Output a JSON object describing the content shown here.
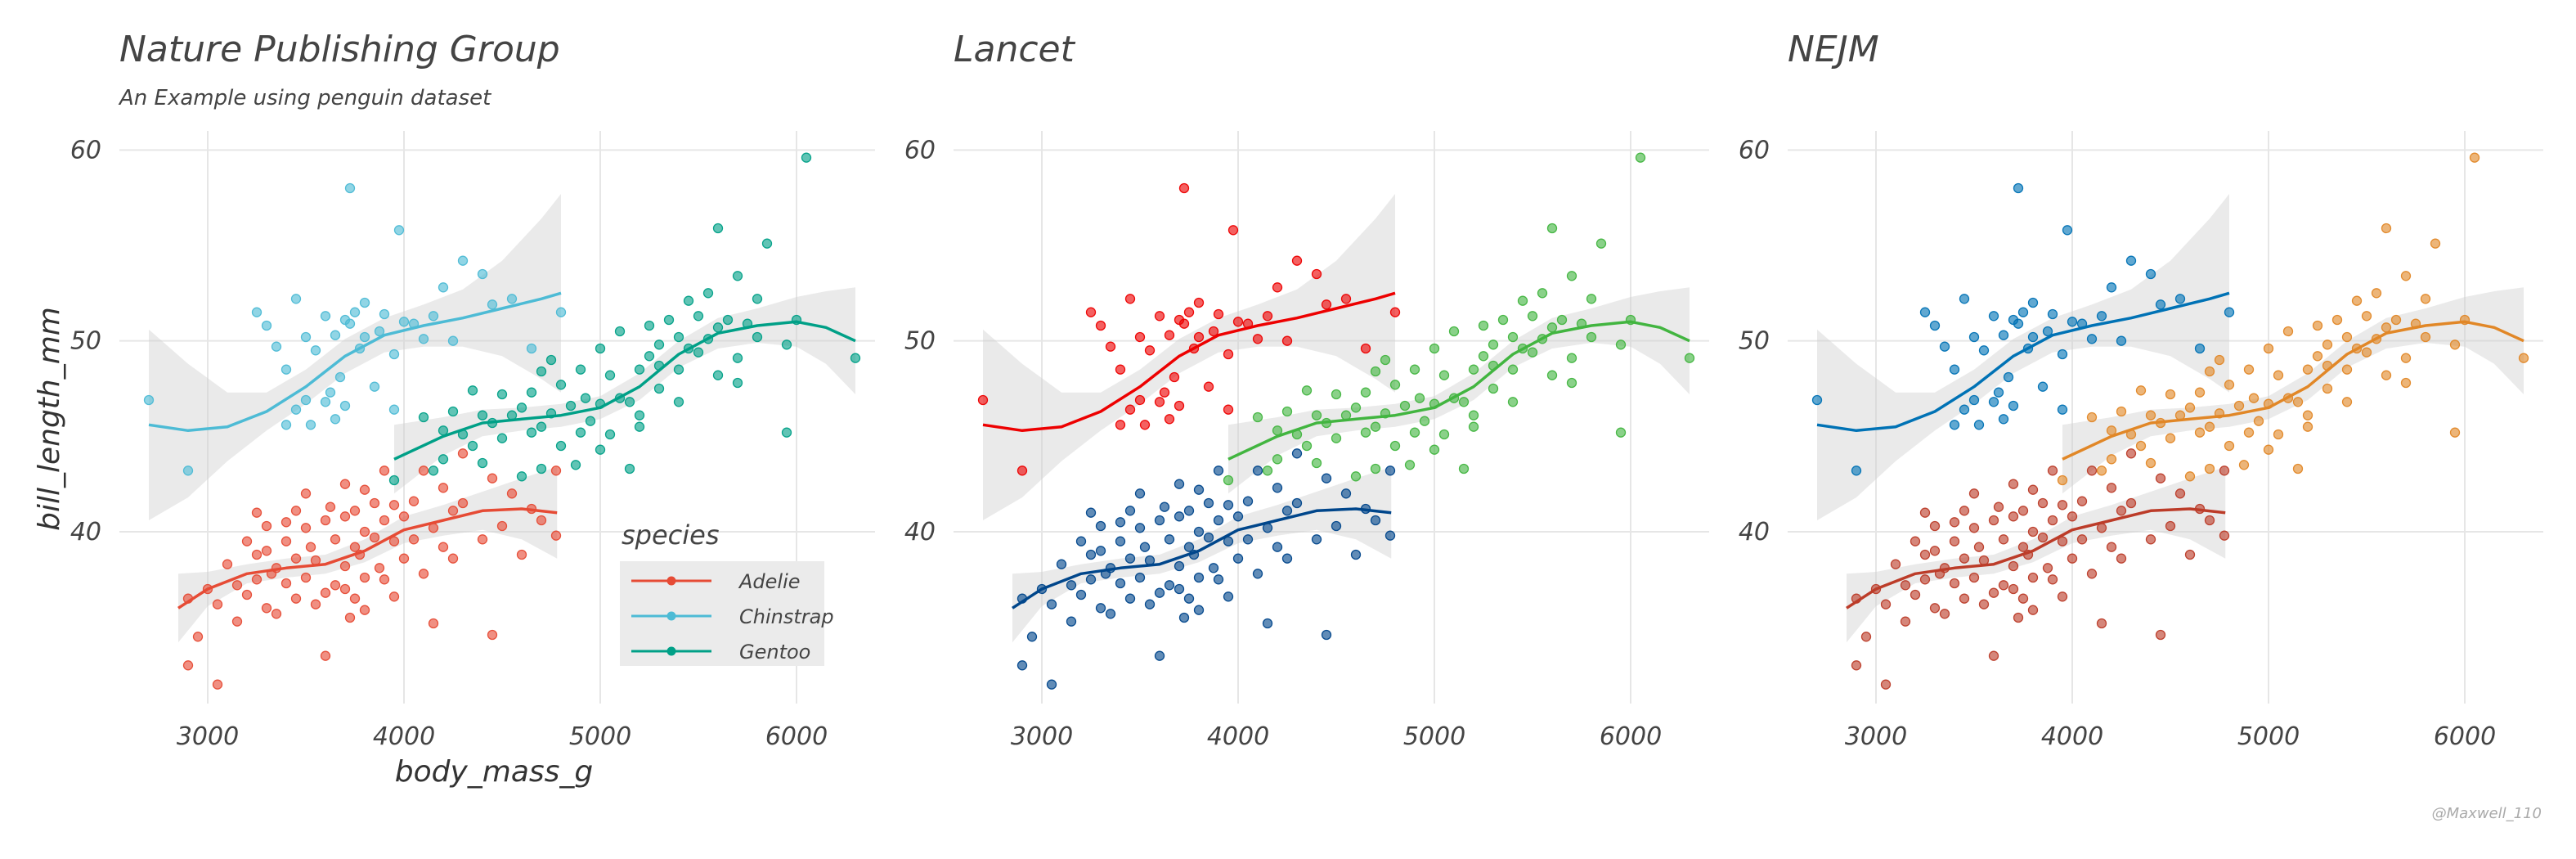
{
  "figure": {
    "xlabel": "body_mass_g",
    "ylabel": "bill_length_mm",
    "caption": "@Maxwell_110",
    "legend": {
      "title": "species",
      "placement": "inside-bottom-right of first panel",
      "entries": [
        "Adelie",
        "Chinstrap",
        "Gentoo"
      ]
    }
  },
  "chart_data": [
    {
      "type": "scatter",
      "title": "Nature Publishing Group",
      "subtitle": "An Example using penguin dataset",
      "xlabel": "body_mass_g",
      "ylabel": "bill_length_mm",
      "xlim": [
        2550,
        6400
      ],
      "ylim": [
        31,
        61
      ],
      "xticks": [
        3000,
        4000,
        5000,
        6000
      ],
      "yticks": [
        40,
        50,
        60
      ],
      "grid": true,
      "colors": {
        "Adelie": "#E64B35",
        "Chinstrap": "#4DBBD5",
        "Gentoo": "#00A087"
      },
      "smooth": true
    },
    {
      "type": "scatter",
      "title": "Lancet",
      "subtitle": "",
      "xlim": [
        2550,
        6400
      ],
      "ylim": [
        31,
        61
      ],
      "xticks": [
        3000,
        4000,
        5000,
        6000
      ],
      "yticks": [
        40,
        50,
        60
      ],
      "grid": true,
      "colors": {
        "Adelie": "#00468B",
        "Chinstrap": "#ED0000",
        "Gentoo": "#42B540"
      },
      "smooth": true
    },
    {
      "type": "scatter",
      "title": "NEJM",
      "subtitle": "",
      "xlim": [
        2550,
        6400
      ],
      "ylim": [
        31,
        61
      ],
      "xticks": [
        3000,
        4000,
        5000,
        6000
      ],
      "yticks": [
        40,
        50,
        60
      ],
      "grid": true,
      "colors": {
        "Adelie": "#BC3C29",
        "Chinstrap": "#0072B5",
        "Gentoo": "#E18727"
      },
      "smooth": true
    }
  ],
  "series": [
    {
      "name": "Adelie",
      "smooth": [
        [
          2850,
          36
        ],
        [
          3000,
          37
        ],
        [
          3200,
          37.8
        ],
        [
          3400,
          38.1
        ],
        [
          3600,
          38.3
        ],
        [
          3800,
          39
        ],
        [
          4000,
          40.1
        ],
        [
          4200,
          40.6
        ],
        [
          4400,
          41.1
        ],
        [
          4600,
          41.2
        ],
        [
          4780,
          41
        ]
      ],
      "band": [
        1.8,
        0.9,
        0.5,
        0.5,
        0.5,
        0.6,
        0.7,
        0.8,
        1.0,
        1.6,
        2.4
      ],
      "points": [
        [
          2900,
          33
        ],
        [
          2900,
          36.5
        ],
        [
          2950,
          34.5
        ],
        [
          3000,
          37
        ],
        [
          3050,
          32
        ],
        [
          3050,
          36.2
        ],
        [
          3100,
          38.3
        ],
        [
          3150,
          37.2
        ],
        [
          3150,
          35.3
        ],
        [
          3200,
          39.5
        ],
        [
          3200,
          36.7
        ],
        [
          3250,
          41
        ],
        [
          3250,
          37.5
        ],
        [
          3250,
          38.8
        ],
        [
          3300,
          40.3
        ],
        [
          3300,
          36
        ],
        [
          3300,
          39
        ],
        [
          3325,
          37.8
        ],
        [
          3350,
          38.1
        ],
        [
          3350,
          35.7
        ],
        [
          3400,
          40.5
        ],
        [
          3400,
          37.3
        ],
        [
          3400,
          39.5
        ],
        [
          3450,
          38.6
        ],
        [
          3450,
          36.5
        ],
        [
          3450,
          41.1
        ],
        [
          3500,
          42
        ],
        [
          3500,
          37.6
        ],
        [
          3500,
          40.2
        ],
        [
          3525,
          39.2
        ],
        [
          3550,
          36.2
        ],
        [
          3550,
          38.5
        ],
        [
          3600,
          40.6
        ],
        [
          3600,
          33.5
        ],
        [
          3600,
          36.8
        ],
        [
          3625,
          41.3
        ],
        [
          3650,
          37.2
        ],
        [
          3650,
          39.6
        ],
        [
          3700,
          42.5
        ],
        [
          3700,
          40.8
        ],
        [
          3700,
          38.2
        ],
        [
          3700,
          37
        ],
        [
          3725,
          35.5
        ],
        [
          3750,
          39.2
        ],
        [
          3750,
          41.1
        ],
        [
          3750,
          36.5
        ],
        [
          3775,
          38.8
        ],
        [
          3800,
          42.2
        ],
        [
          3800,
          40
        ],
        [
          3800,
          37.6
        ],
        [
          3800,
          35.9
        ],
        [
          3850,
          39.7
        ],
        [
          3850,
          41.5
        ],
        [
          3875,
          38.1
        ],
        [
          3900,
          43.2
        ],
        [
          3900,
          37.5
        ],
        [
          3900,
          40.6
        ],
        [
          3950,
          39.5
        ],
        [
          3950,
          41.4
        ],
        [
          3950,
          36.6
        ],
        [
          4000,
          38.6
        ],
        [
          4000,
          40.8
        ],
        [
          4050,
          39.6
        ],
        [
          4050,
          41.6
        ],
        [
          4100,
          43.2
        ],
        [
          4100,
          37.8
        ],
        [
          4150,
          40.2
        ],
        [
          4150,
          35.2
        ],
        [
          4200,
          42.3
        ],
        [
          4200,
          39.2
        ],
        [
          4250,
          41.1
        ],
        [
          4250,
          38.6
        ],
        [
          4300,
          41.5
        ],
        [
          4300,
          44.1
        ],
        [
          4400,
          39.6
        ],
        [
          4450,
          34.6
        ],
        [
          4450,
          42.8
        ],
        [
          4500,
          40.3
        ],
        [
          4550,
          42
        ],
        [
          4600,
          38.8
        ],
        [
          4650,
          41.2
        ],
        [
          4700,
          40.6
        ],
        [
          4775,
          39.8
        ],
        [
          4775,
          43.2
        ]
      ]
    },
    {
      "name": "Chinstrap",
      "smooth": [
        [
          2700,
          45.6
        ],
        [
          2900,
          45.3
        ],
        [
          3100,
          45.5
        ],
        [
          3300,
          46.3
        ],
        [
          3500,
          47.6
        ],
        [
          3700,
          49.2
        ],
        [
          3900,
          50.3
        ],
        [
          4100,
          50.8
        ],
        [
          4300,
          51.2
        ],
        [
          4500,
          51.7
        ],
        [
          4700,
          52.2
        ],
        [
          4800,
          52.5
        ]
      ],
      "band": [
        5,
        3.5,
        1.8,
        1.0,
        0.9,
        0.9,
        0.9,
        1.1,
        1.5,
        2.5,
        4.2,
        5.2
      ],
      "points": [
        [
          2700,
          46.9
        ],
        [
          2900,
          43.2
        ],
        [
          3250,
          51.5
        ],
        [
          3300,
          50.8
        ],
        [
          3350,
          49.7
        ],
        [
          3400,
          45.6
        ],
        [
          3400,
          48.5
        ],
        [
          3450,
          52.2
        ],
        [
          3450,
          46.4
        ],
        [
          3500,
          50.2
        ],
        [
          3500,
          46.9
        ],
        [
          3525,
          45.6
        ],
        [
          3550,
          49.5
        ],
        [
          3600,
          51.3
        ],
        [
          3600,
          46.8
        ],
        [
          3625,
          47.3
        ],
        [
          3650,
          50.3
        ],
        [
          3650,
          45.9
        ],
        [
          3675,
          48.1
        ],
        [
          3700,
          51.1
        ],
        [
          3700,
          46.6
        ],
        [
          3725,
          58
        ],
        [
          3725,
          50.9
        ],
        [
          3750,
          51.5
        ],
        [
          3775,
          49.6
        ],
        [
          3800,
          52
        ],
        [
          3800,
          50.2
        ],
        [
          3850,
          47.6
        ],
        [
          3875,
          50.5
        ],
        [
          3900,
          51.4
        ],
        [
          3950,
          46.4
        ],
        [
          3950,
          49.3
        ],
        [
          3975,
          55.8
        ],
        [
          4000,
          51
        ],
        [
          4050,
          50.9
        ],
        [
          4100,
          50.1
        ],
        [
          4150,
          51.3
        ],
        [
          4200,
          52.8
        ],
        [
          4250,
          50
        ],
        [
          4300,
          54.2
        ],
        [
          4400,
          53.5
        ],
        [
          4450,
          51.9
        ],
        [
          4550,
          52.2
        ],
        [
          4650,
          49.6
        ],
        [
          4800,
          51.5
        ]
      ]
    },
    {
      "name": "Gentoo",
      "smooth": [
        [
          3950,
          43.8
        ],
        [
          4200,
          45
        ],
        [
          4400,
          45.7
        ],
        [
          4600,
          45.9
        ],
        [
          4800,
          46.1
        ],
        [
          5000,
          46.5
        ],
        [
          5200,
          47.6
        ],
        [
          5400,
          49.3
        ],
        [
          5600,
          50.4
        ],
        [
          5800,
          50.8
        ],
        [
          6000,
          51
        ],
        [
          6150,
          50.7
        ],
        [
          6300,
          50
        ]
      ],
      "band": [
        1.8,
        1.0,
        0.7,
        0.6,
        0.6,
        0.6,
        0.7,
        0.7,
        0.8,
        0.9,
        1.3,
        1.9,
        2.8
      ],
      "points": [
        [
          3950,
          42.7
        ],
        [
          4100,
          46
        ],
        [
          4150,
          43.2
        ],
        [
          4200,
          45.3
        ],
        [
          4200,
          43.8
        ],
        [
          4250,
          46.3
        ],
        [
          4300,
          45.1
        ],
        [
          4350,
          44.5
        ],
        [
          4350,
          47.4
        ],
        [
          4400,
          46.1
        ],
        [
          4400,
          43.6
        ],
        [
          4450,
          45.7
        ],
        [
          4500,
          47.2
        ],
        [
          4500,
          44.9
        ],
        [
          4550,
          46.1
        ],
        [
          4600,
          46.5
        ],
        [
          4600,
          42.9
        ],
        [
          4650,
          47.3
        ],
        [
          4650,
          45.2
        ],
        [
          4700,
          48.4
        ],
        [
          4700,
          45.5
        ],
        [
          4700,
          43.3
        ],
        [
          4750,
          46.2
        ],
        [
          4750,
          49
        ],
        [
          4800,
          47.7
        ],
        [
          4800,
          44.5
        ],
        [
          4850,
          46.6
        ],
        [
          4875,
          43.5
        ],
        [
          4900,
          48.5
        ],
        [
          4900,
          45.2
        ],
        [
          4925,
          47
        ],
        [
          4950,
          45.8
        ],
        [
          5000,
          49.6
        ],
        [
          5000,
          46.7
        ],
        [
          5000,
          44.3
        ],
        [
          5050,
          48.2
        ],
        [
          5050,
          45.1
        ],
        [
          5100,
          50.5
        ],
        [
          5100,
          47
        ],
        [
          5150,
          43.3
        ],
        [
          5150,
          46.8
        ],
        [
          5200,
          48.5
        ],
        [
          5200,
          45.5
        ],
        [
          5200,
          46.1
        ],
        [
          5250,
          49.2
        ],
        [
          5250,
          50.8
        ],
        [
          5300,
          47.5
        ],
        [
          5300,
          49.8
        ],
        [
          5300,
          48.7
        ],
        [
          5350,
          51.1
        ],
        [
          5400,
          50.2
        ],
        [
          5400,
          48.5
        ],
        [
          5400,
          46.8
        ],
        [
          5450,
          52.1
        ],
        [
          5450,
          49.6
        ],
        [
          5500,
          51.3
        ],
        [
          5500,
          49.4
        ],
        [
          5550,
          50.1
        ],
        [
          5550,
          52.5
        ],
        [
          5600,
          50.7
        ],
        [
          5600,
          55.9
        ],
        [
          5600,
          48.2
        ],
        [
          5650,
          51.1
        ],
        [
          5700,
          53.4
        ],
        [
          5700,
          49.1
        ],
        [
          5700,
          47.8
        ],
        [
          5750,
          50.9
        ],
        [
          5800,
          50.2
        ],
        [
          5800,
          52.2
        ],
        [
          5850,
          55.1
        ],
        [
          5950,
          45.2
        ],
        [
          5950,
          49.8
        ],
        [
          6000,
          51.1
        ],
        [
          6050,
          59.6
        ],
        [
          6300,
          49.1
        ]
      ]
    }
  ]
}
